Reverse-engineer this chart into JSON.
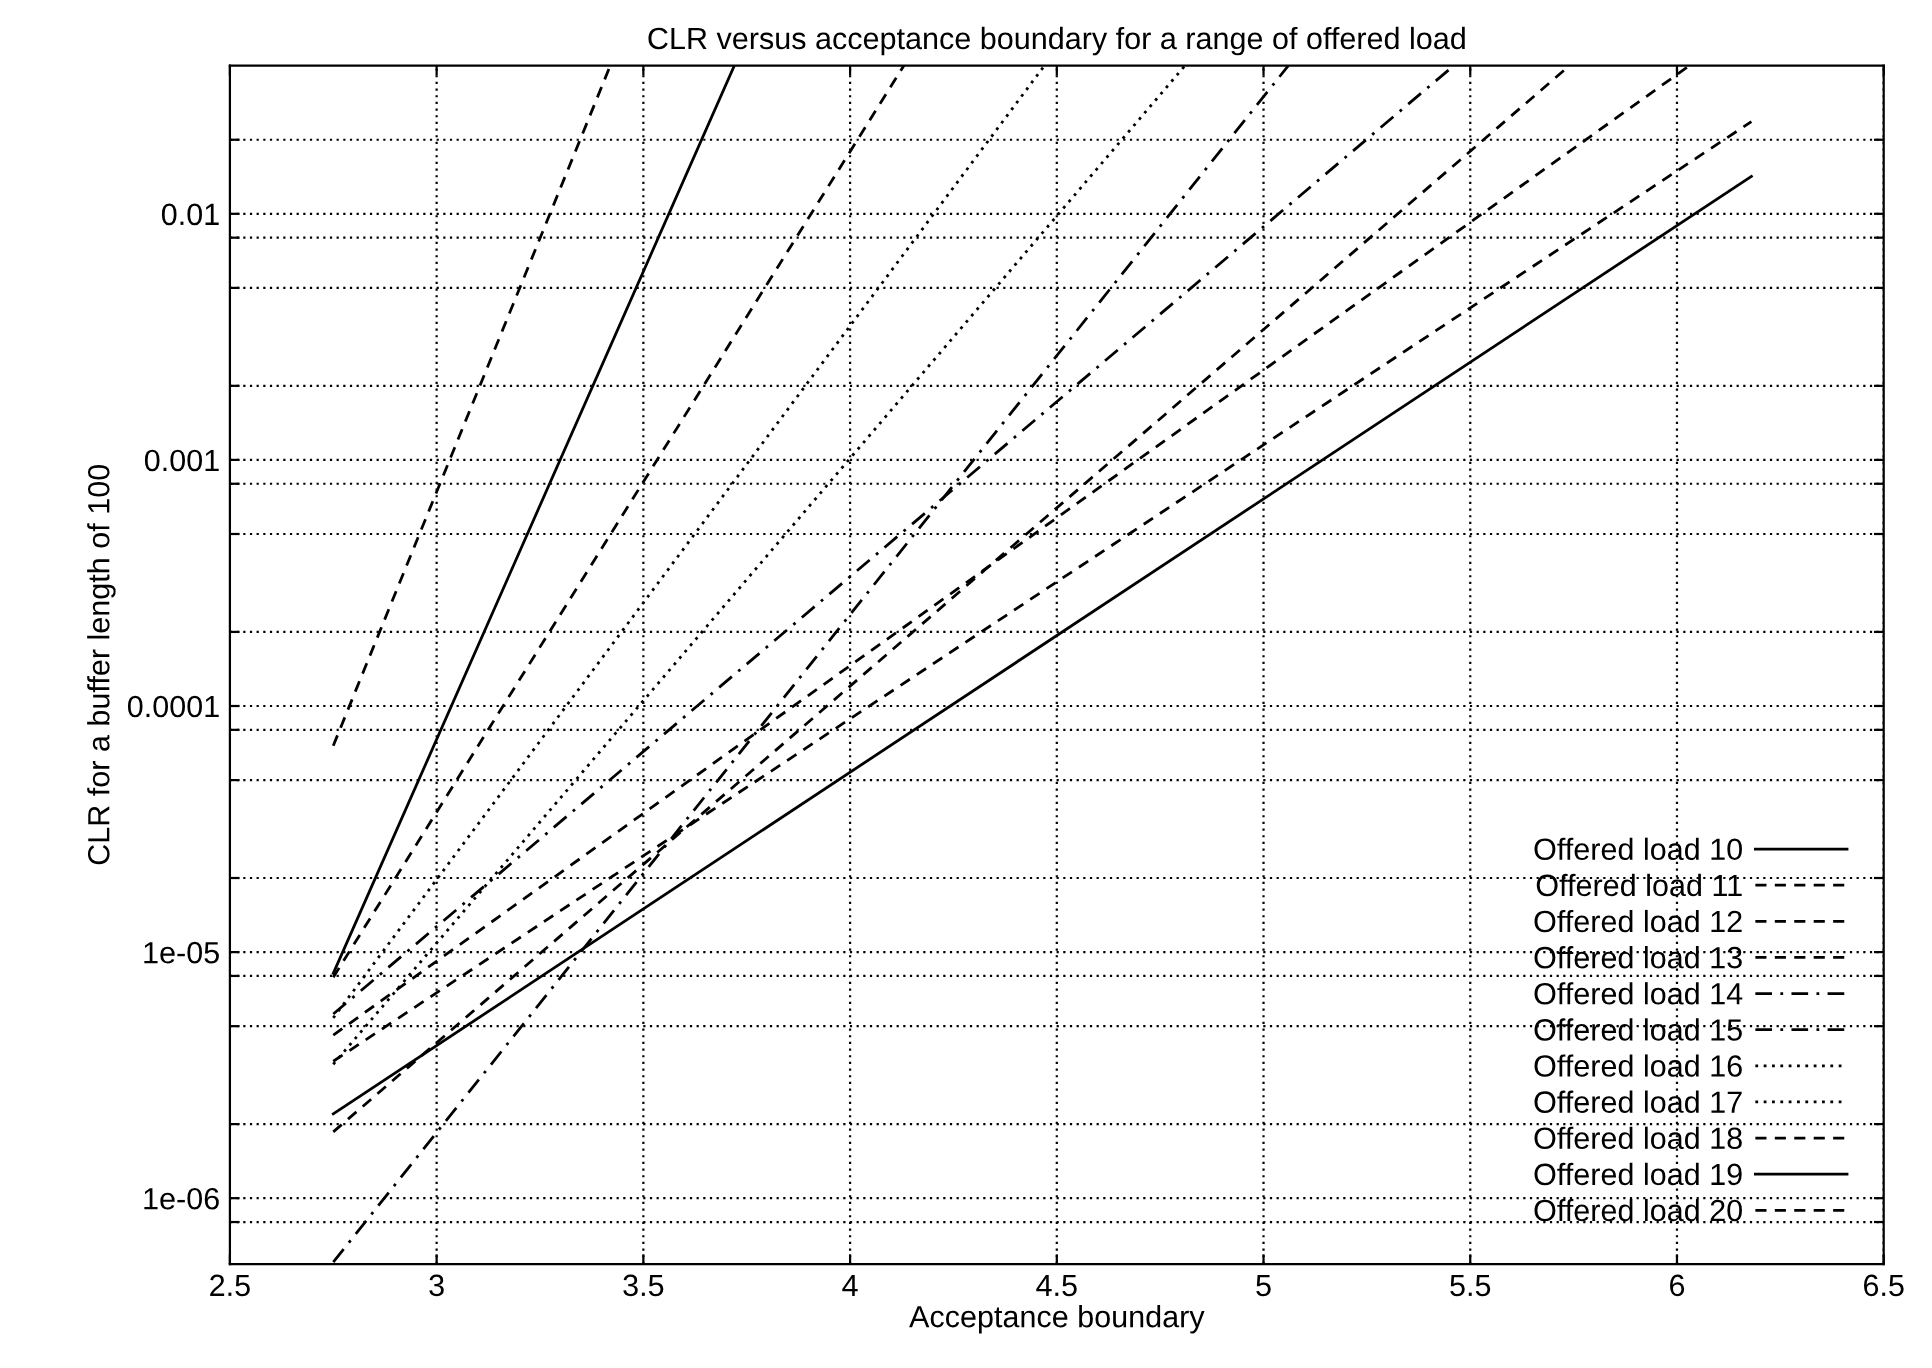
{
  "chart_data": {
    "type": "line",
    "title": "CLR versus acceptance boundary for a range of offered load",
    "xlabel": "Acceptance boundary",
    "ylabel": "CLR for a buffer length of 100",
    "log": "y",
    "grid": true,
    "legend": "lower right",
    "marker": "none",
    "xlim": [
      2.5,
      6.5
    ],
    "xticks": [
      2.5,
      3,
      3.5,
      4,
      4.5,
      5,
      5.5,
      6,
      6.5
    ],
    "ylim": [
      5.4e-07,
      0.04
    ],
    "yticks": [
      {
        "value": 8e-07,
        "label": null
      },
      {
        "value": 1e-06,
        "label": "1e-06"
      },
      {
        "value": 2e-06,
        "label": null
      },
      {
        "value": 5e-06,
        "label": null
      },
      {
        "value": 8e-06,
        "label": null
      },
      {
        "value": 1e-05,
        "label": "1e-05"
      },
      {
        "value": 2e-05,
        "label": null
      },
      {
        "value": 5e-05,
        "label": null
      },
      {
        "value": 8e-05,
        "label": null
      },
      {
        "value": 0.0001,
        "label": "0.0001"
      },
      {
        "value": 0.0002,
        "label": null
      },
      {
        "value": 0.0005,
        "label": null
      },
      {
        "value": 0.0008,
        "label": null
      },
      {
        "value": 0.001,
        "label": "0.001"
      },
      {
        "value": 0.002,
        "label": null
      },
      {
        "value": 0.005,
        "label": null
      },
      {
        "value": 0.008,
        "label": null
      },
      {
        "value": 0.01,
        "label": "0.01"
      },
      {
        "value": 0.02,
        "label": null
      }
    ],
    "series": [
      {
        "name": "Offered load 10",
        "color": "#000000",
        "line_style": "solid",
        "x": [
          2.75,
          6.18
        ],
        "values": [
          2.2e-06,
          0.0142
        ]
      },
      {
        "name": "Offered load 11",
        "color": "#000000",
        "line_style": "dashed",
        "x": [
          2.75,
          6.18
        ],
        "values": [
          3.6e-06,
          0.0237
        ]
      },
      {
        "name": "Offered load 12",
        "color": "#000000",
        "line_style": "dashed",
        "x": [
          2.75,
          6.03
        ],
        "values": [
          4.6e-06,
          0.04
        ]
      },
      {
        "name": "Offered load 13",
        "color": "#000000",
        "line_style": "dashed",
        "x": [
          2.75,
          5.74
        ],
        "values": [
          1.86e-06,
          0.04
        ]
      },
      {
        "name": "Offered load 14",
        "color": "#000000",
        "line_style": "dashdot",
        "x": [
          2.75,
          5.46
        ],
        "values": [
          5.6e-06,
          0.04
        ]
      },
      {
        "name": "Offered load 15",
        "color": "#000000",
        "line_style": "dashdot",
        "x": [
          2.75,
          5.06
        ],
        "values": [
          5.5e-07,
          0.04
        ]
      },
      {
        "name": "Offered load 16",
        "color": "#000000",
        "line_style": "dotted",
        "x": [
          2.75,
          4.81
        ],
        "values": [
          3.5e-06,
          0.04
        ]
      },
      {
        "name": "Offered load 17",
        "color": "#000000",
        "line_style": "dotted",
        "x": [
          2.75,
          4.47
        ],
        "values": [
          5.4e-06,
          0.04
        ]
      },
      {
        "name": "Offered load 18",
        "color": "#000000",
        "line_style": "dashed",
        "x": [
          2.75,
          4.13
        ],
        "values": [
          7.9e-06,
          0.04
        ]
      },
      {
        "name": "Offered load 19",
        "color": "#000000",
        "line_style": "solid",
        "x": [
          2.75,
          3.72
        ],
        "values": [
          8.2e-06,
          0.04
        ]
      },
      {
        "name": "Offered load 20",
        "color": "#000000",
        "line_style": "dashed",
        "x": [
          2.75,
          3.42
        ],
        "values": [
          6.9e-05,
          0.04
        ]
      }
    ]
  }
}
